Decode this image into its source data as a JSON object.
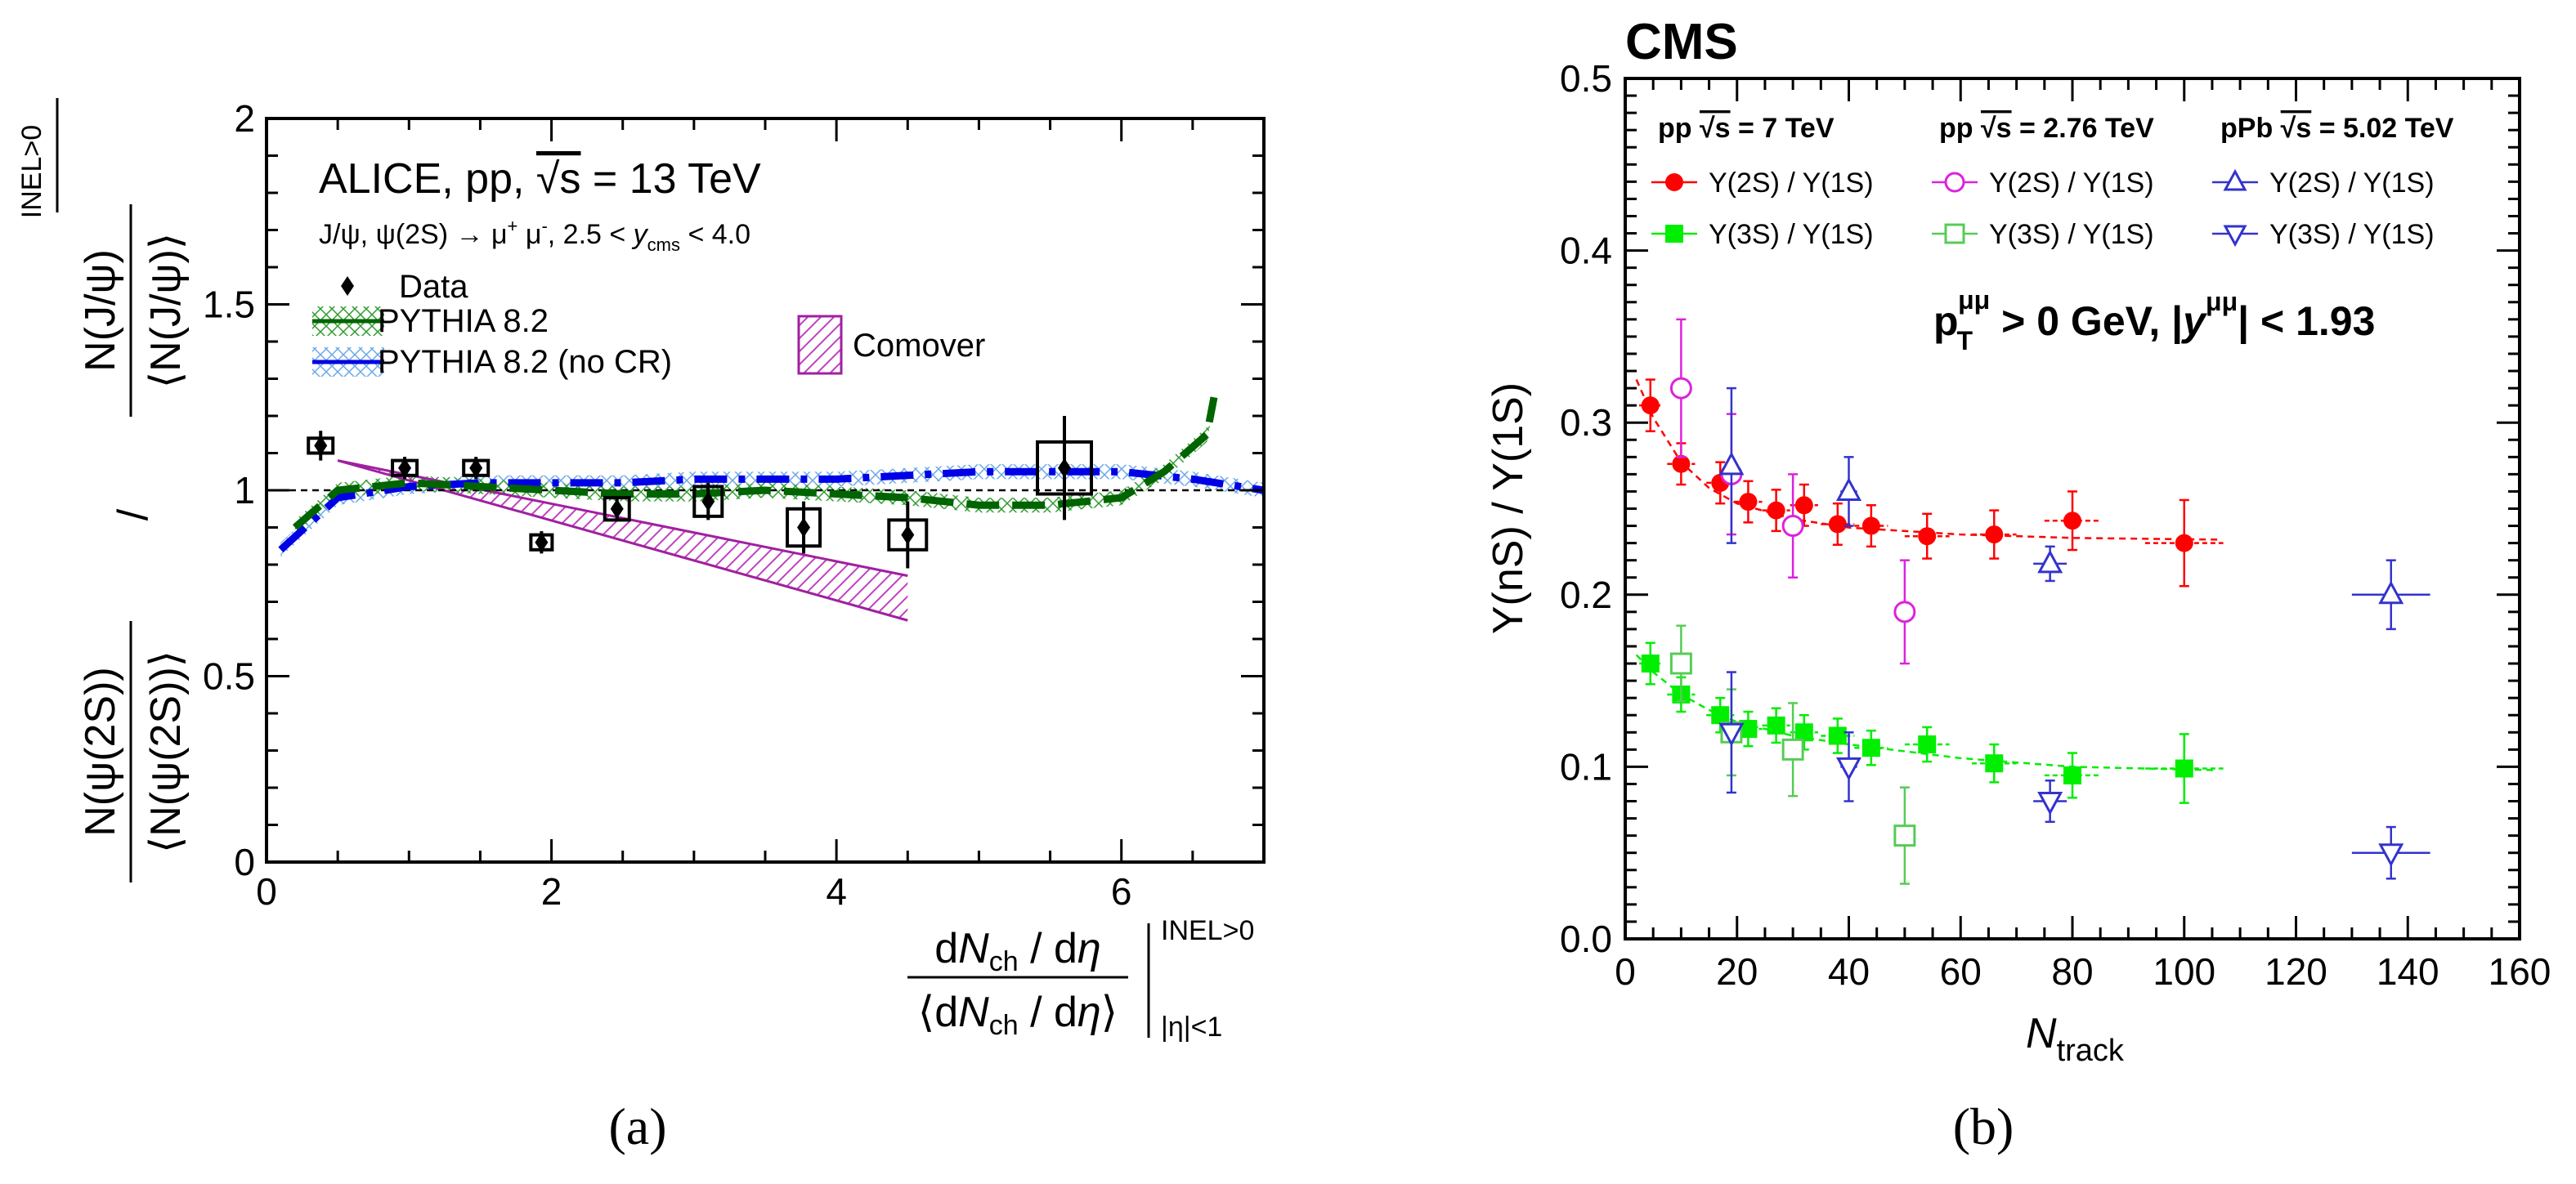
{
  "caption_a": "(a)",
  "caption_b": "(b)",
  "colors": {
    "data": "#000000",
    "pythia": "#006400",
    "pythia_nocr": "#0000e6",
    "comover": "#a020a0",
    "red": "#ff0000",
    "magenta": "#dd22dd",
    "blue": "#3333cc",
    "green": "#00ee00",
    "lgreen": "#55cc55"
  },
  "chart_data": [
    {
      "type": "scatter",
      "panel": "a",
      "title": "ALICE, pp, √s = 13 TeV",
      "subtitle": "J/ψ, ψ(2S) → μ⁺ μ⁻, 2.5 < y_cms < 4.0",
      "title_parts": {
        "a": "ALICE, pp, ",
        "b": "√s",
        "c": " = 13 TeV"
      },
      "subtitle_parts": {
        "a": "J/ψ, ψ(2S) → μ",
        "b": "+",
        "c": " μ",
        "d": "-",
        "e": ", 2.5 < ",
        "f": "y",
        "g": "cms",
        "h": " < 4.0"
      },
      "xlim": [
        0,
        7
      ],
      "ylim": [
        0,
        2
      ],
      "xticks": [
        "0",
        "2",
        "4",
        "6"
      ],
      "yticks": [
        "0",
        "0.5",
        "1",
        "1.5",
        "2"
      ],
      "xlabel_parts": {
        "num_d": "d",
        "num_n": "N",
        "num_sub": "ch",
        "num_rest": " / d",
        "num_eta": "η",
        "den_open": "⟨d",
        "den_n": "N",
        "den_sub": "ch",
        "den_rest": " / d",
        "den_eta": "η",
        "den_close": "⟩",
        "sup": "INEL>0",
        "sub": "|η|<1"
      },
      "ylabel_parts": {
        "num1": "N(ψ(2S))",
        "den1": "⟨N(ψ(2S))⟩",
        "slash": "/",
        "num2": "N(J/ψ)",
        "den2": "⟨N(J/ψ)⟩",
        "sup": "INEL>0"
      },
      "reference_line": 1,
      "legend": [
        {
          "label": "Data",
          "style": "diamond"
        },
        {
          "label": "PYTHIA 8.2",
          "style": "green-band"
        },
        {
          "label": "PYTHIA 8.2 (no CR)",
          "style": "blue-band"
        },
        {
          "label": "Comover",
          "style": "magenta-band"
        }
      ],
      "data": [
        {
          "x": 0.38,
          "y": 1.12,
          "stat": 0.04,
          "sys": 0.02
        },
        {
          "x": 0.97,
          "y": 1.06,
          "stat": 0.03,
          "sys": 0.02
        },
        {
          "x": 1.47,
          "y": 1.06,
          "stat": 0.03,
          "sys": 0.02
        },
        {
          "x": 1.93,
          "y": 0.86,
          "stat": 0.03,
          "sys": 0.02
        },
        {
          "x": 2.46,
          "y": 0.95,
          "stat": 0.03,
          "sys": 0.03
        },
        {
          "x": 3.1,
          "y": 0.97,
          "stat": 0.05,
          "sys": 0.04
        },
        {
          "x": 3.77,
          "y": 0.9,
          "stat": 0.07,
          "sys": 0.05
        },
        {
          "x": 4.5,
          "y": 0.88,
          "stat": 0.09,
          "sys": 0.04
        },
        {
          "x": 5.6,
          "y": 1.06,
          "stat": 0.14,
          "sys": 0.07
        }
      ],
      "pythia": {
        "x": [
          0.2,
          0.5,
          1.0,
          1.5,
          2.0,
          2.5,
          3.0,
          3.5,
          4.0,
          4.5,
          5.0,
          5.5,
          6.0,
          6.3,
          6.6,
          6.65
        ],
        "y": [
          0.9,
          1.0,
          1.02,
          1.01,
          1.0,
          0.99,
          0.99,
          1.0,
          0.99,
          0.98,
          0.96,
          0.96,
          0.98,
          1.05,
          1.15,
          1.25
        ],
        "band": 0.02
      },
      "pythia_nocr": {
        "x": [
          0.1,
          0.5,
          1.0,
          1.5,
          2.0,
          2.5,
          3.0,
          3.5,
          4.0,
          4.5,
          5.0,
          5.5,
          6.0,
          6.5,
          7.0
        ],
        "y": [
          0.84,
          0.98,
          1.01,
          1.02,
          1.02,
          1.02,
          1.03,
          1.03,
          1.03,
          1.04,
          1.05,
          1.05,
          1.05,
          1.03,
          1.0
        ],
        "band": 0.02
      },
      "comover": {
        "x": [
          0.5,
          4.5
        ],
        "upper": [
          1.08,
          0.77
        ],
        "lower": [
          1.08,
          0.65
        ]
      }
    },
    {
      "type": "scatter",
      "panel": "b",
      "title": "CMS",
      "xlabel": "N_track",
      "xlabel_main": "N",
      "xlabel_sub": "track",
      "ylabel": "Υ(nS) / Υ(1S)",
      "xlim": [
        0,
        160
      ],
      "ylim": [
        0,
        0.5
      ],
      "xticks": [
        "0",
        "20",
        "40",
        "60",
        "80",
        "100",
        "120",
        "140",
        "160"
      ],
      "yticks": [
        "0.0",
        "0.1",
        "0.2",
        "0.3",
        "0.4",
        "0.5"
      ],
      "cut_text": {
        "p": "p",
        "sub": "T",
        "sup": "μμ",
        "mid": "  >  0 GeV,  |",
        "y": "y",
        "ysup": "μμ",
        "end": "|  <  1.93"
      },
      "legend_headers": [
        {
          "a": "pp  ",
          "b": "√s",
          "c": " = 7 TeV"
        },
        {
          "a": "pp  ",
          "b": "√s",
          "c": " = 2.76 TeV"
        },
        {
          "a": "pPb  ",
          "b": "√s",
          "c": " = 5.02 TeV"
        }
      ],
      "legend": [
        {
          "label": "Υ(2S) / Υ(1S)",
          "marker": "filled-circle",
          "color": "red"
        },
        {
          "label": "Υ(3S) / Υ(1S)",
          "marker": "filled-square",
          "color": "green"
        },
        {
          "label": "Υ(2S) / Υ(1S)",
          "marker": "open-circle",
          "color": "magenta"
        },
        {
          "label": "Υ(3S) / Υ(1S)",
          "marker": "open-square",
          "color": "lgreen"
        },
        {
          "label": "Υ(2S) / Υ(1S)",
          "marker": "open-triangle-up",
          "color": "blue"
        },
        {
          "label": "Υ(3S) / Υ(1S)",
          "marker": "open-triangle-down",
          "color": "blue"
        }
      ],
      "series": [
        {
          "name": "pp 7 TeV Υ(2S)/Υ(1S)",
          "marker": "filled-circle",
          "color": "red",
          "x": [
            4.5,
            10,
            17,
            22,
            27,
            32,
            38,
            44,
            54,
            66,
            80,
            100
          ],
          "y": [
            0.31,
            0.276,
            0.265,
            0.254,
            0.249,
            0.252,
            0.241,
            0.24,
            0.234,
            0.235,
            0.243,
            0.23
          ],
          "yerr": [
            0.015,
            0.012,
            0.012,
            0.012,
            0.012,
            0.012,
            0.012,
            0.012,
            0.013,
            0.014,
            0.017,
            0.025
          ],
          "xerr": [
            2,
            2.5,
            2.5,
            2.5,
            2.5,
            2.5,
            3,
            3,
            4,
            4,
            5,
            7
          ]
        },
        {
          "name": "pp 7 TeV Υ(3S)/Υ(1S)",
          "marker": "filled-square",
          "color": "green",
          "x": [
            4.5,
            10,
            17,
            22,
            27,
            32,
            38,
            44,
            54,
            66,
            80,
            100
          ],
          "y": [
            0.16,
            0.142,
            0.13,
            0.122,
            0.124,
            0.12,
            0.118,
            0.111,
            0.113,
            0.102,
            0.095,
            0.099
          ],
          "yerr": [
            0.012,
            0.01,
            0.01,
            0.01,
            0.01,
            0.01,
            0.01,
            0.01,
            0.01,
            0.011,
            0.013,
            0.02
          ],
          "xerr": [
            2,
            2.5,
            2.5,
            2.5,
            2.5,
            2.5,
            3,
            3,
            4,
            4,
            5,
            7
          ]
        },
        {
          "name": "pp 2.76 TeV Υ(2S)/Υ(1S)",
          "marker": "open-circle",
          "color": "magenta",
          "x": [
            10,
            19,
            30,
            50
          ],
          "y": [
            0.32,
            0.27,
            0.24,
            0.19
          ],
          "yerr": [
            0.04,
            0.035,
            0.03,
            0.03
          ],
          "xerr": [
            0,
            0,
            0,
            0
          ]
        },
        {
          "name": "pp 2.76 TeV Υ(3S)/Υ(1S)",
          "marker": "open-square",
          "color": "lgreen",
          "x": [
            10,
            19,
            30,
            50
          ],
          "y": [
            0.16,
            0.12,
            0.11,
            0.06
          ],
          "yerr": [
            0.022,
            0.025,
            0.027,
            0.028
          ],
          "xerr": [
            0,
            0,
            0,
            0
          ]
        },
        {
          "name": "pPb 5.02 TeV Υ(2S)/Υ(1S)",
          "marker": "open-triangle-up",
          "color": "blue",
          "x": [
            19,
            40,
            76,
            137
          ],
          "y": [
            0.275,
            0.26,
            0.218,
            0.2
          ],
          "yerr": [
            0.045,
            0.02,
            0.01,
            0.02
          ],
          "xerr": [
            0,
            1.5,
            3,
            7
          ]
        },
        {
          "name": "pPb 5.02 TeV Υ(3S)/Υ(1S)",
          "marker": "open-triangle-down",
          "color": "blue",
          "x": [
            19,
            40,
            76,
            137
          ],
          "y": [
            0.12,
            0.1,
            0.08,
            0.05
          ],
          "yerr": [
            0.035,
            0.02,
            0.012,
            0.015
          ],
          "xerr": [
            0,
            1.5,
            3,
            7
          ]
        }
      ],
      "fits": [
        {
          "color": "red",
          "x": [
            2,
            5,
            10,
            15,
            20,
            30,
            40,
            60,
            80,
            106
          ],
          "y": [
            0.325,
            0.303,
            0.277,
            0.262,
            0.253,
            0.244,
            0.239,
            0.235,
            0.233,
            0.232
          ]
        },
        {
          "color": "green",
          "x": [
            2,
            5,
            10,
            15,
            20,
            30,
            40,
            60,
            80,
            106
          ],
          "y": [
            0.165,
            0.155,
            0.142,
            0.133,
            0.126,
            0.118,
            0.113,
            0.105,
            0.1,
            0.098
          ]
        }
      ]
    }
  ]
}
